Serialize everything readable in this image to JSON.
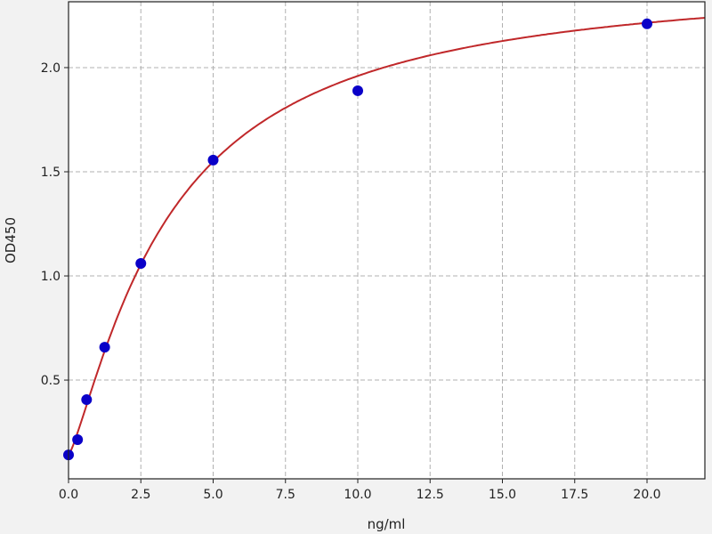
{
  "chart_data": {
    "type": "scatter",
    "title": "",
    "xlabel": "ng/ml",
    "ylabel": "OD450",
    "xlim": [
      0,
      22
    ],
    "ylim": [
      0.026,
      2.316
    ],
    "x_ticks": [
      "0.0",
      "2.5",
      "5.0",
      "7.5",
      "10.0",
      "12.5",
      "15.0",
      "17.5",
      "20.0"
    ],
    "x_tick_values": [
      0,
      2.5,
      5,
      7.5,
      10,
      12.5,
      15,
      17.5,
      20
    ],
    "y_ticks": [
      "0.5",
      "1.0",
      "1.5",
      "2.0"
    ],
    "y_tick_values": [
      0.5,
      1.0,
      1.5,
      2.0
    ],
    "grid": true,
    "points": {
      "x": [
        0,
        0.3125,
        0.625,
        1.25,
        2.5,
        5,
        10,
        20
      ],
      "y": [
        0.141,
        0.214,
        0.406,
        0.658,
        1.06,
        1.556,
        1.889,
        2.21
      ]
    },
    "colors": {
      "points": "#0a00c8",
      "curve": "#c0282a",
      "background": "#f2f2f2",
      "plot": "#ffffff",
      "grid": "#b0b0b0"
    }
  }
}
